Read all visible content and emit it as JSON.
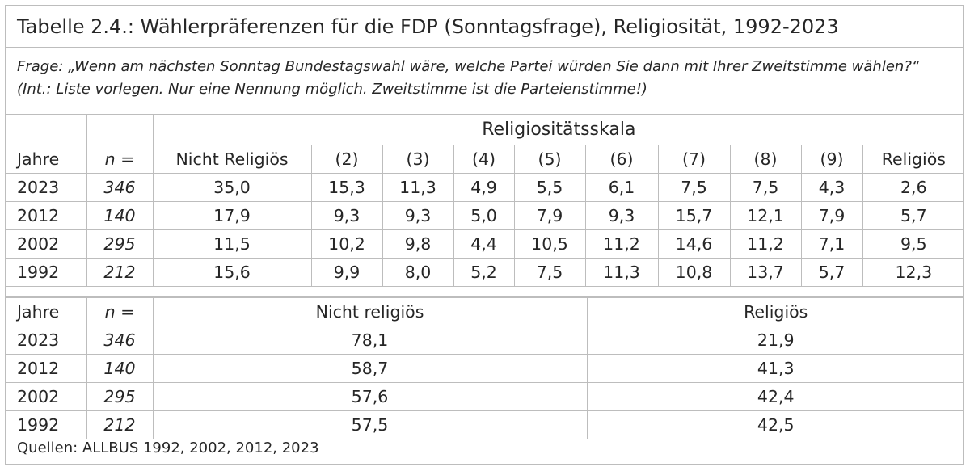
{
  "title": "Tabelle 2.4.: Wählerpräferenzen für die FDP (Sonntagsfrage), Religiosität, 1992-2023",
  "question_line1": "Frage: „Wenn am nächsten Sonntag Bundestagswahl wäre, welche Partei würden Sie dann mit Ihrer Zweitstimme wählen?“",
  "question_line2": "(Int.: Liste vorlegen. Nur eine Nennung möglich. Zweitstimme ist die Parteienstimme!)",
  "table1": {
    "scale_header": "Religiositätsskala",
    "col_year": "Jahre",
    "col_n": "n =",
    "columns": [
      "Nicht Religiös",
      "(2)",
      "(3)",
      "(4)",
      "(5)",
      "(6)",
      "(7)",
      "(8)",
      "(9)",
      "Religiös"
    ],
    "rows": [
      {
        "year": "2023",
        "n": "346",
        "values": [
          "35,0",
          "15,3",
          "11,3",
          "4,9",
          "5,5",
          "6,1",
          "7,5",
          "7,5",
          "4,3",
          "2,6"
        ]
      },
      {
        "year": "2012",
        "n": "140",
        "values": [
          "17,9",
          "9,3",
          "9,3",
          "5,0",
          "7,9",
          "9,3",
          "15,7",
          "12,1",
          "7,9",
          "5,7"
        ]
      },
      {
        "year": "2002",
        "n": "295",
        "values": [
          "11,5",
          "10,2",
          "9,8",
          "4,4",
          "10,5",
          "11,2",
          "14,6",
          "11,2",
          "7,1",
          "9,5"
        ]
      },
      {
        "year": "1992",
        "n": "212",
        "values": [
          "15,6",
          "9,9",
          "8,0",
          "5,2",
          "7,5",
          "11,3",
          "10,8",
          "13,7",
          "5,7",
          "12,3"
        ]
      }
    ]
  },
  "table2": {
    "col_year": "Jahre",
    "col_n": "n =",
    "columns": [
      "Nicht religiös",
      "Religiös"
    ],
    "rows": [
      {
        "year": "2023",
        "n": "346",
        "values": [
          "78,1",
          "21,9"
        ]
      },
      {
        "year": "2012",
        "n": "140",
        "values": [
          "58,7",
          "41,3"
        ]
      },
      {
        "year": "2002",
        "n": "295",
        "values": [
          "57,6",
          "42,4"
        ]
      },
      {
        "year": "1992",
        "n": "212",
        "values": [
          "57,5",
          "42,5"
        ]
      }
    ]
  },
  "source": "Quellen: ALLBUS 1992, 2002, 2012, 2023"
}
